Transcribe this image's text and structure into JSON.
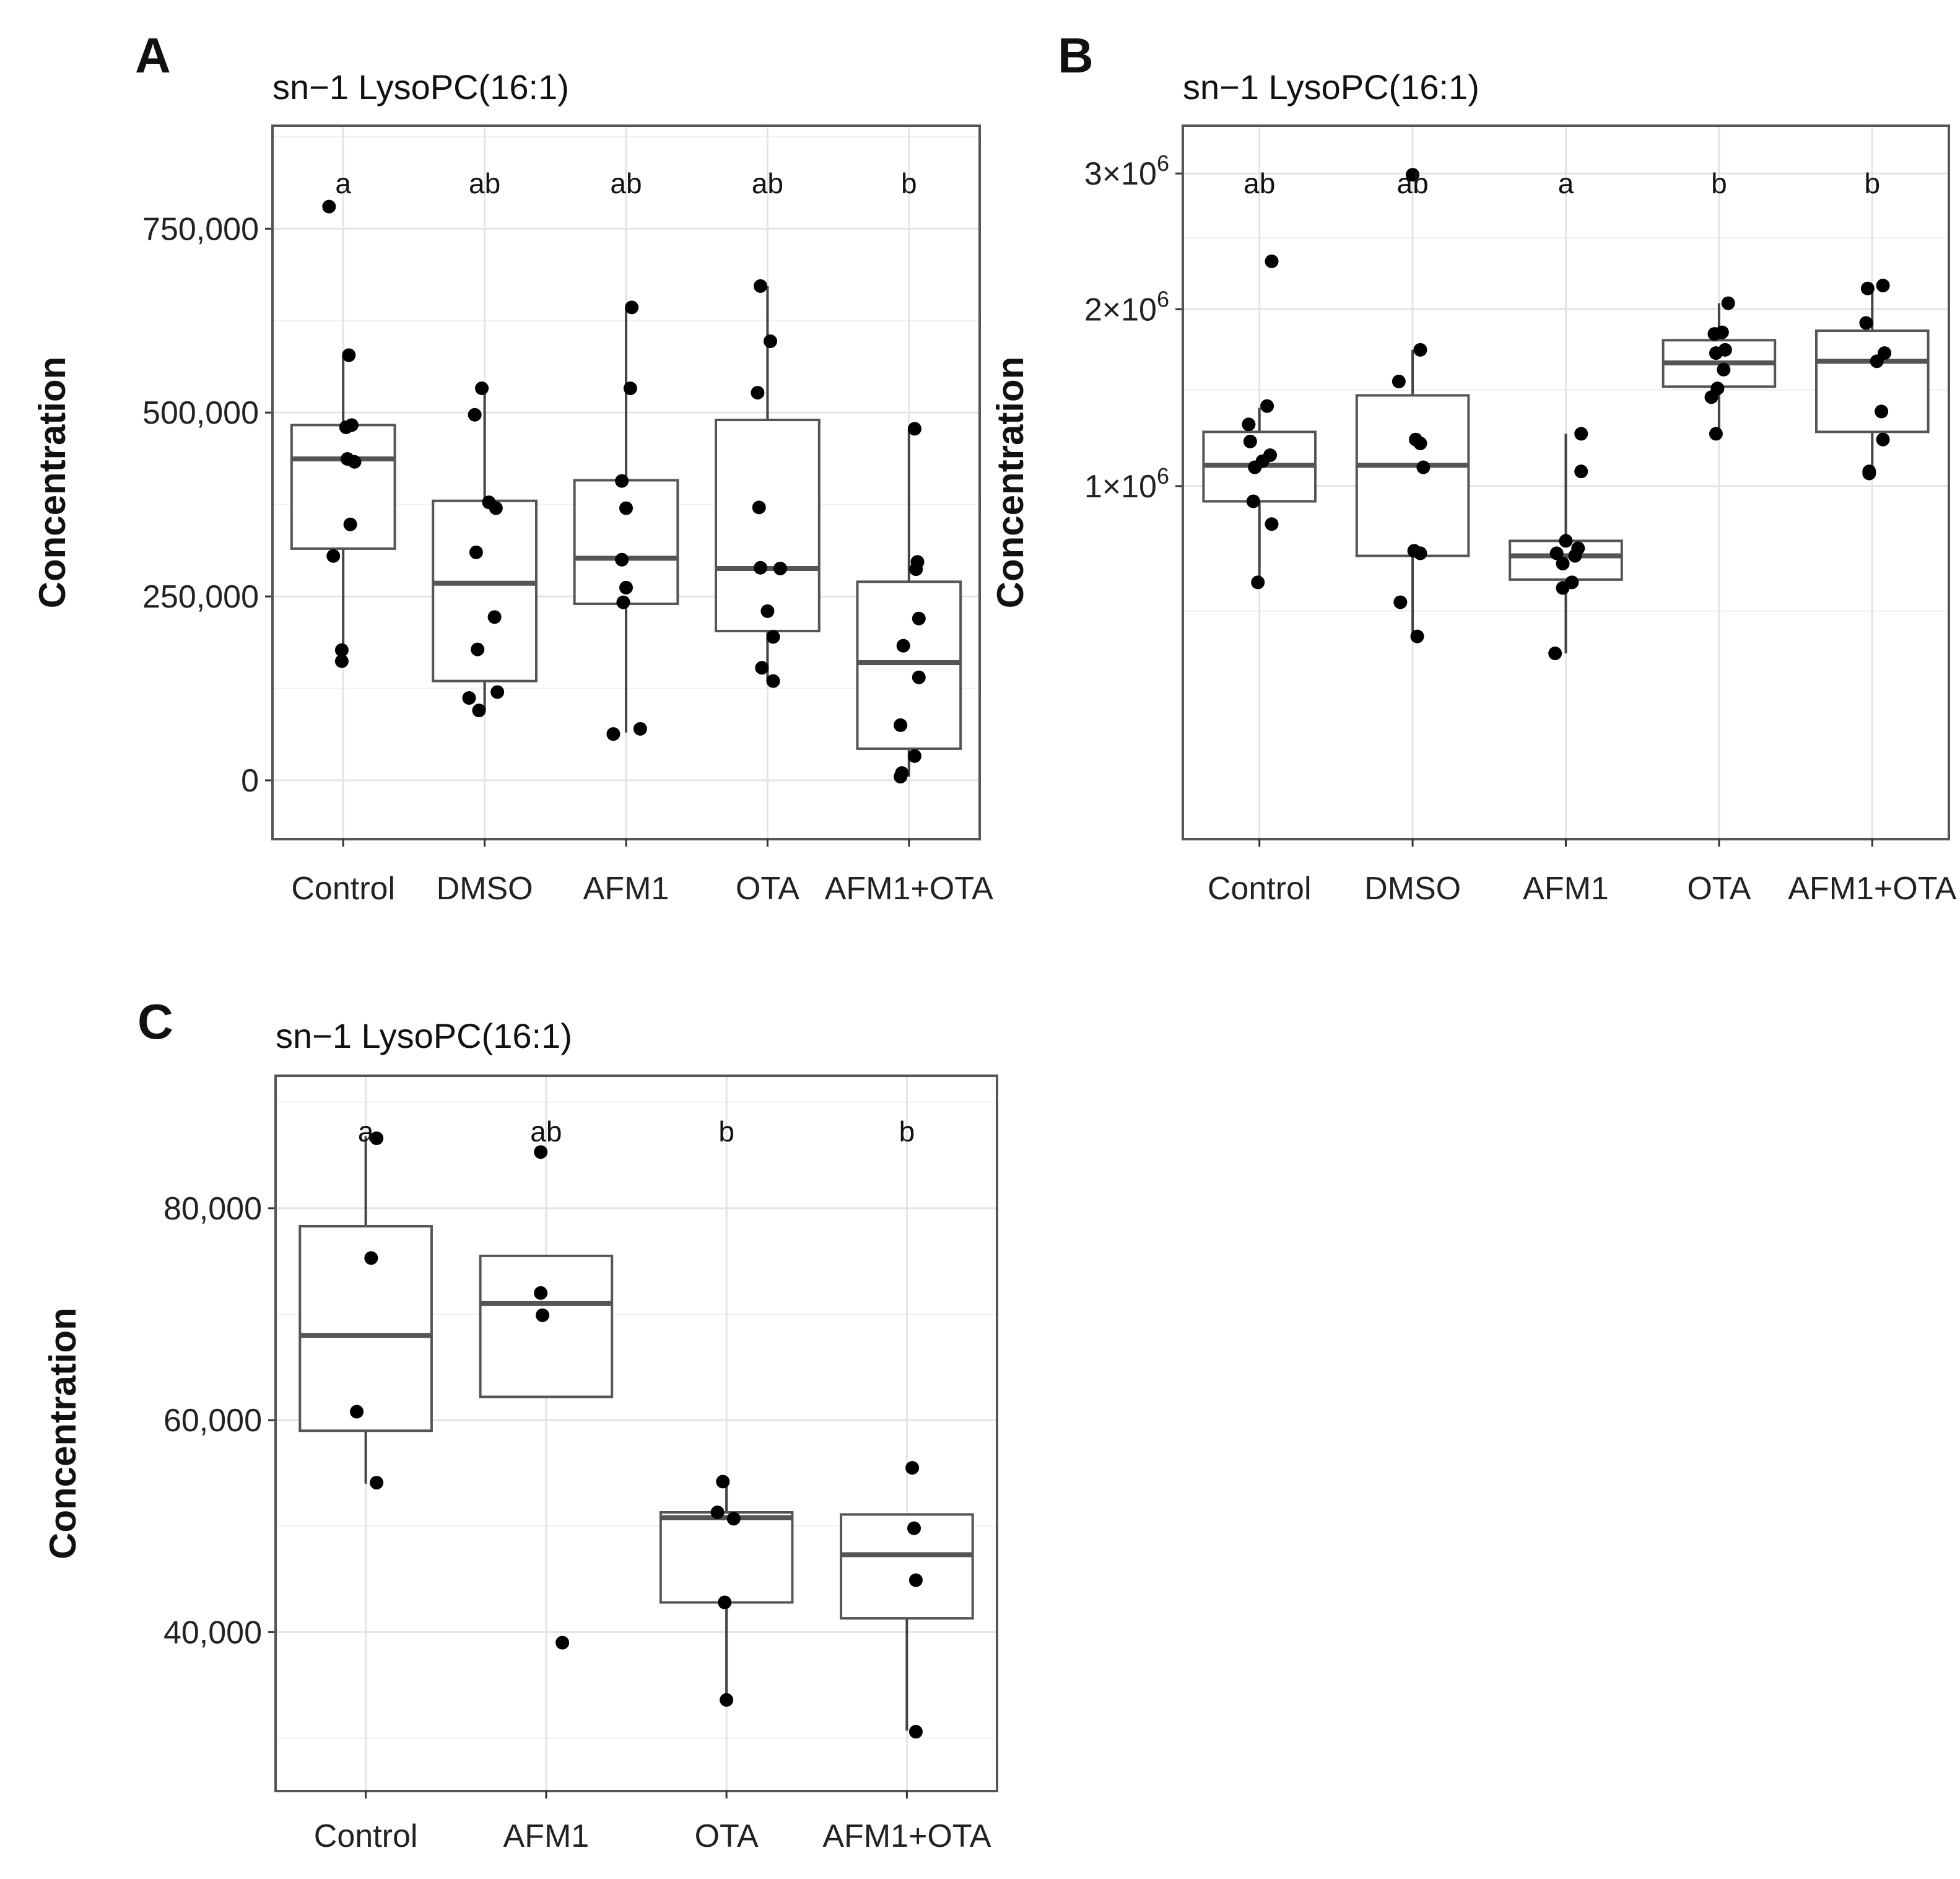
{
  "chart_data": [
    {
      "panel": "A",
      "type": "box",
      "title": "sn−1 LysoPC(16:1)",
      "xlabel": "",
      "ylabel": "Concentration",
      "ylim": [
        -80000,
        890000
      ],
      "yticks": [
        0,
        250000,
        500000,
        750000
      ],
      "ytick_labels": [
        "0",
        "250,000",
        "500,000",
        "750,000"
      ],
      "grid": true,
      "categories": [
        "Control",
        "DMSO",
        "AFM1",
        "OTA",
        "AFM1+OTA"
      ],
      "significance": [
        "a",
        "ab",
        "ab",
        "ab",
        "b"
      ],
      "boxes": [
        {
          "q1": 315000,
          "median": 437000,
          "q3": 483000,
          "whisker_low": 165000,
          "whisker_high": 578000
        },
        {
          "q1": 135000,
          "median": 268000,
          "q3": 380000,
          "whisker_low": 95000,
          "whisker_high": 533000
        },
        {
          "q1": 240000,
          "median": 302000,
          "q3": 408000,
          "whisker_low": 65000,
          "whisker_high": 643000
        },
        {
          "q1": 203000,
          "median": 288000,
          "q3": 490000,
          "whisker_low": 135000,
          "whisker_high": 672000
        },
        {
          "q1": 43000,
          "median": 160000,
          "q3": 270000,
          "whisker_low": 5000,
          "whisker_high": 478000
        }
      ],
      "points": [
        {
          "cat": 0,
          "values": [
            780000,
            578000,
            483000,
            480000,
            437000,
            433000,
            348000,
            305000,
            177000,
            162000
          ],
          "jitter": [
            -0.1,
            0.04,
            0.06,
            0.02,
            0.03,
            0.08,
            0.05,
            -0.07,
            -0.01,
            -0.01
          ]
        },
        {
          "cat": 1,
          "values": [
            533000,
            497000,
            378000,
            370000,
            310000,
            222000,
            178000,
            120000,
            112000,
            95000
          ],
          "jitter": [
            -0.02,
            -0.07,
            0.03,
            0.08,
            -0.06,
            0.07,
            -0.05,
            0.09,
            -0.11,
            -0.04
          ]
        },
        {
          "cat": 2,
          "values": [
            643000,
            533000,
            407000,
            370000,
            300000,
            262000,
            242000,
            70000,
            63000
          ],
          "jitter": [
            0.04,
            0.03,
            -0.03,
            0.0,
            -0.03,
            0.0,
            -0.02,
            0.1,
            -0.09
          ]
        },
        {
          "cat": 3,
          "values": [
            672000,
            597000,
            527000,
            371000,
            289000,
            288000,
            230000,
            195000,
            153000,
            135000
          ],
          "jitter": [
            -0.05,
            0.02,
            -0.07,
            -0.06,
            -0.05,
            0.09,
            0.0,
            0.04,
            -0.04,
            0.04
          ]
        },
        {
          "cat": 4,
          "values": [
            478000,
            297000,
            287000,
            220000,
            183000,
            140000,
            75000,
            33000,
            10000,
            5000
          ],
          "jitter": [
            0.04,
            0.06,
            0.05,
            0.07,
            -0.04,
            0.07,
            -0.06,
            0.04,
            -0.05,
            -0.06
          ]
        }
      ]
    },
    {
      "panel": "B",
      "type": "box",
      "title": "sn−1 LysoPC(16:1)",
      "xlabel": "",
      "ylabel": "Concentration",
      "ylim": [
        0.03,
        3.4
      ],
      "yscale": "sqrt",
      "yticks": [
        1,
        2,
        3
      ],
      "yminor": [
        0.5,
        1.5,
        2.5
      ],
      "ytick_labels": [
        "1×10",
        "2×10",
        "3×10"
      ],
      "ytick_exponent": "6",
      "value_unit": "×10^6",
      "grid": true,
      "categories": [
        "Control",
        "DMSO",
        "AFM1",
        "OTA",
        "AFM1+OTA"
      ],
      "significance": [
        "ab",
        "ab",
        "a",
        "b",
        "b"
      ],
      "boxes": [
        {
          "q1": 0.93,
          "median": 1.1,
          "q3": 1.27,
          "whisker_low": 0.6,
          "whisker_high": 1.4
        },
        {
          "q1": 0.7,
          "median": 1.1,
          "q3": 1.47,
          "whisker_low": 0.42,
          "whisker_high": 1.74
        },
        {
          "q1": 0.61,
          "median": 0.7,
          "q3": 0.76,
          "whisker_low": 0.37,
          "whisker_high": 1.26
        },
        {
          "q1": 1.52,
          "median": 1.66,
          "q3": 1.8,
          "whisker_low": 1.26,
          "whisker_high": 2.04
        },
        {
          "q1": 1.27,
          "median": 1.67,
          "q3": 1.86,
          "whisker_low": 1.06,
          "whisker_high": 2.16
        }
      ],
      "points": [
        {
          "cat": 0,
          "values": [
            2.33,
            1.41,
            1.31,
            1.22,
            1.15,
            1.12,
            1.09,
            0.93,
            0.83,
            0.6
          ],
          "jitter": [
            0.08,
            0.05,
            -0.07,
            -0.06,
            0.07,
            0.02,
            -0.03,
            -0.04,
            0.08,
            -0.01
          ]
        },
        {
          "cat": 1,
          "values": [
            2.99,
            1.74,
            1.55,
            1.23,
            1.21,
            1.09,
            0.72,
            0.71,
            0.53,
            0.42
          ],
          "jitter": [
            0.0,
            0.05,
            -0.09,
            0.02,
            0.05,
            0.07,
            0.01,
            0.05,
            -0.08,
            0.03
          ]
        },
        {
          "cat": 2,
          "values": [
            1.26,
            1.07,
            0.76,
            0.73,
            0.71,
            0.7,
            0.67,
            0.6,
            0.58,
            0.37
          ],
          "jitter": [
            0.1,
            0.1,
            0.0,
            0.08,
            -0.06,
            0.06,
            -0.02,
            0.04,
            -0.02,
            -0.07
          ]
        },
        {
          "cat": 3,
          "values": [
            2.04,
            1.85,
            1.84,
            1.74,
            1.72,
            1.62,
            1.51,
            1.46,
            1.26
          ],
          "jitter": [
            0.06,
            0.02,
            -0.03,
            0.04,
            -0.02,
            0.03,
            -0.01,
            -0.05,
            -0.02
          ]
        },
        {
          "cat": 4,
          "values": [
            2.16,
            2.14,
            1.91,
            1.72,
            1.67,
            1.38,
            1.23,
            1.07,
            1.06
          ],
          "jitter": [
            0.07,
            -0.03,
            -0.04,
            0.08,
            0.03,
            0.06,
            0.07,
            -0.02,
            -0.02
          ]
        }
      ]
    },
    {
      "panel": "C",
      "type": "box",
      "title": "sn−1 LysoPC(16:1)",
      "xlabel": "",
      "ylabel": "Concentration",
      "ylim": [
        25000,
        92500
      ],
      "yticks": [
        40000,
        60000,
        80000
      ],
      "yminor": [
        30000,
        50000,
        70000,
        90000
      ],
      "ytick_labels": [
        "40,000",
        "60,000",
        "80,000"
      ],
      "grid": true,
      "categories": [
        "Control",
        "AFM1",
        "OTA",
        "AFM1+OTA"
      ],
      "significance": [
        "a",
        "ab",
        "b",
        "b"
      ],
      "boxes": [
        {
          "q1": 59000,
          "median": 68000,
          "q3": 78300,
          "whisker_low": 54000,
          "whisker_high": 86800
        },
        {
          "q1": 62200,
          "median": 71000,
          "q3": 75500,
          "whisker_low": 62200,
          "whisker_high": 75500
        },
        {
          "q1": 42800,
          "median": 50800,
          "q3": 51300,
          "whisker_low": 33500,
          "whisker_high": 54300
        },
        {
          "q1": 41300,
          "median": 47300,
          "q3": 51100,
          "whisker_low": 30700,
          "whisker_high": 51100
        }
      ],
      "points": [
        {
          "cat": 0,
          "values": [
            86600,
            75300,
            60800,
            54100
          ],
          "jitter": [
            0.06,
            0.03,
            -0.05,
            0.06
          ]
        },
        {
          "cat": 1,
          "values": [
            85300,
            72000,
            69900,
            39000
          ],
          "jitter": [
            -0.03,
            -0.03,
            -0.02,
            0.09
          ]
        },
        {
          "cat": 2,
          "values": [
            54200,
            51300,
            50700,
            42800,
            33600
          ],
          "jitter": [
            -0.02,
            -0.05,
            0.04,
            -0.01,
            0.0
          ]
        },
        {
          "cat": 3,
          "values": [
            55500,
            49800,
            44900,
            30600
          ],
          "jitter": [
            0.03,
            0.04,
            0.05,
            0.05
          ]
        }
      ]
    }
  ]
}
